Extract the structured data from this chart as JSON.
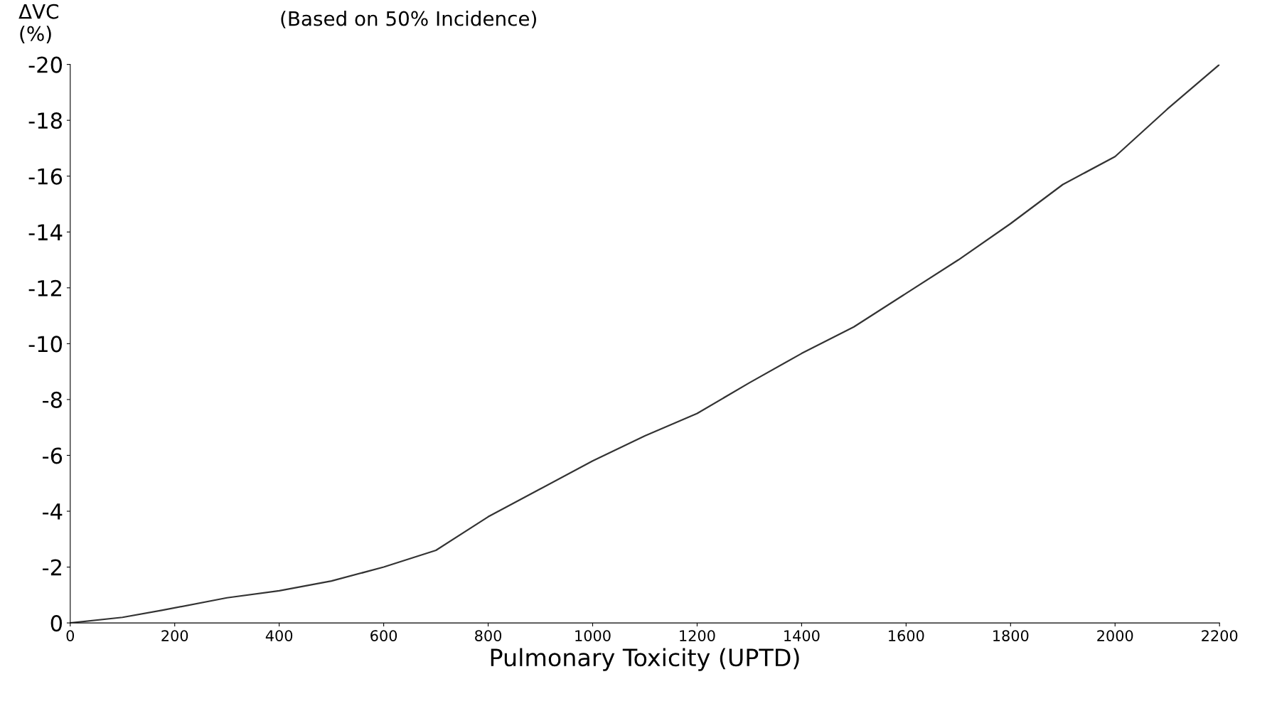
{
  "chart_data": {
    "type": "line",
    "title": "(Based on 50% Incidence)",
    "xlabel": "Pulmonary Toxicity (UPTD)",
    "ylabel": "ΔVC\n(%)",
    "x": [
      0,
      100,
      175,
      300,
      400,
      500,
      600,
      700,
      800,
      900,
      1000,
      1100,
      1200,
      1300,
      1400,
      1500,
      1600,
      1700,
      1800,
      1900,
      2000,
      2100,
      2200
    ],
    "values": [
      0,
      -0.2,
      -0.45,
      -0.9,
      -1.15,
      -1.5,
      -2.0,
      -2.6,
      -3.8,
      -4.8,
      -5.8,
      -6.7,
      -7.5,
      -8.6,
      -9.65,
      -10.6,
      -11.8,
      -13.0,
      -14.3,
      -15.7,
      -16.7,
      -18.4,
      -20.0
    ],
    "color": "#333333",
    "line_style": "solid",
    "marker": "none",
    "xlim": [
      0,
      2200
    ],
    "xticks": [
      0,
      200,
      400,
      600,
      800,
      1000,
      1200,
      1400,
      1600,
      1800,
      2000,
      2200
    ],
    "ylim": [
      0,
      -20
    ],
    "yticks": [
      0,
      -2,
      -4,
      -6,
      -8,
      -10,
      -12,
      -14,
      -16,
      -18,
      -20
    ],
    "grid": false,
    "legend": false
  }
}
